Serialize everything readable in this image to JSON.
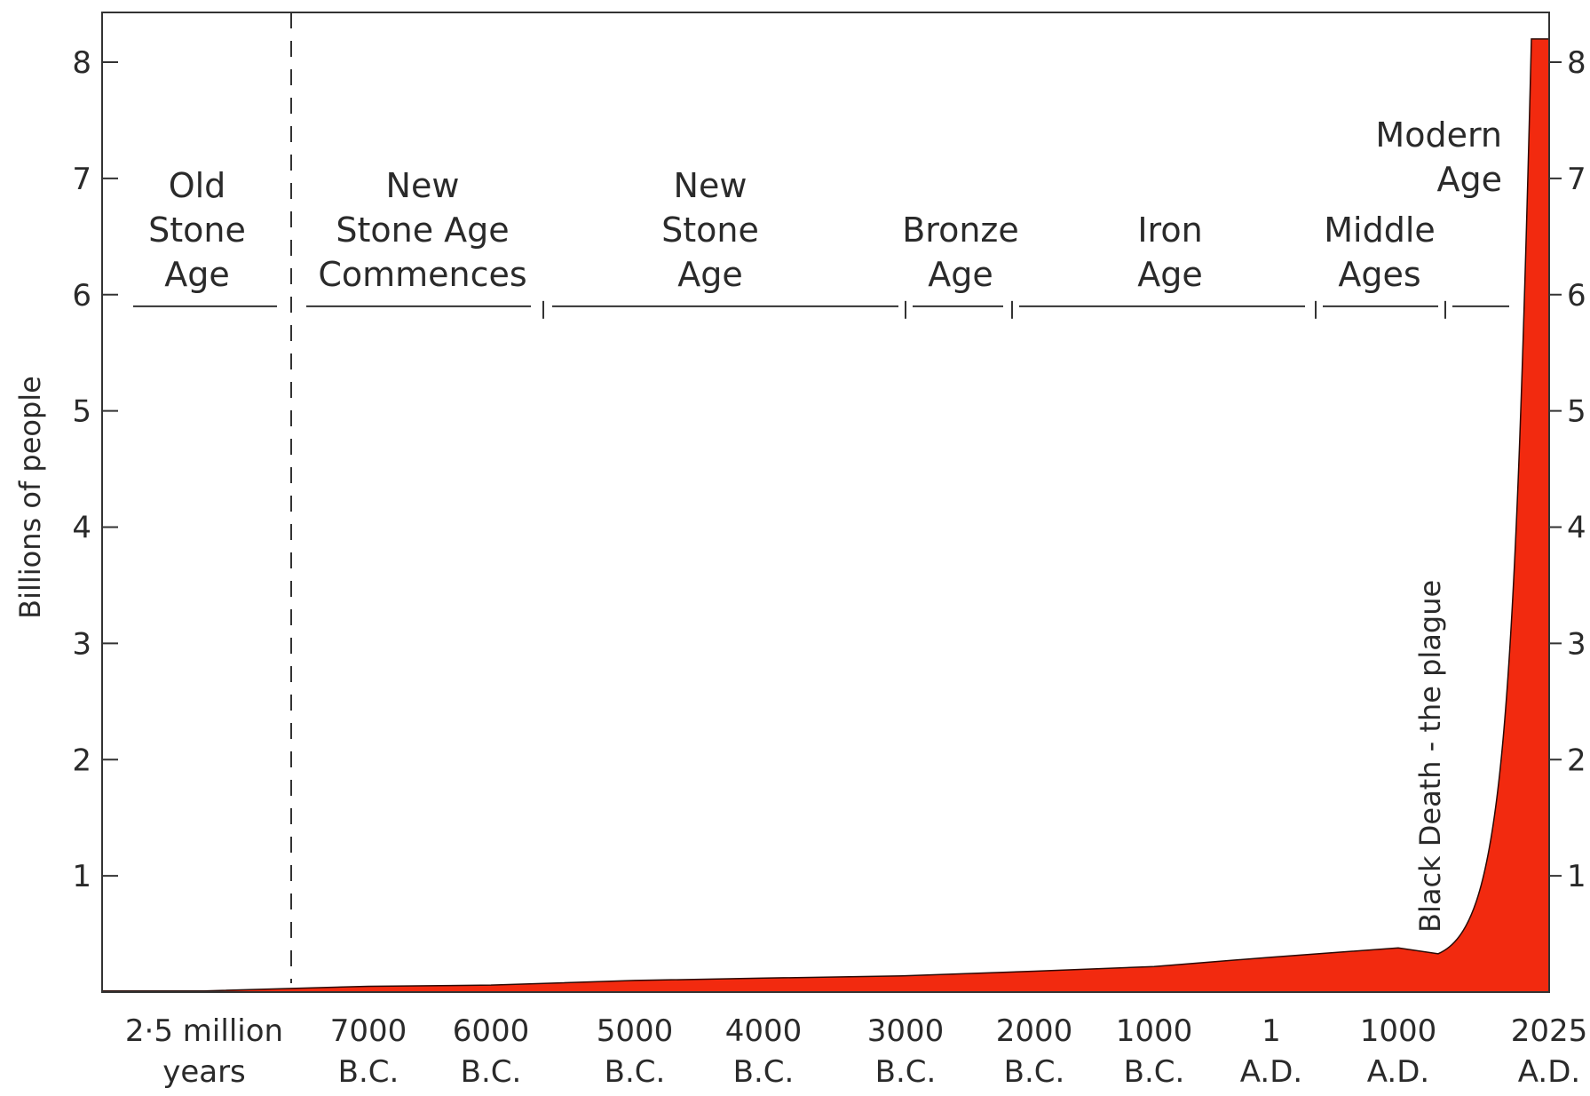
{
  "chart_data": {
    "type": "area",
    "title": "",
    "xlabel": "",
    "ylabel": "Billions of people",
    "ylim": [
      0,
      8.5
    ],
    "y_ticks": [
      1,
      2,
      3,
      4,
      5,
      6,
      7,
      8
    ],
    "y_ticks_right": true,
    "grid": false,
    "fill_color": "#f22a0f",
    "x_ticks": [
      {
        "key": "x0",
        "lines": [
          "2·5 million",
          "years"
        ]
      },
      {
        "key": "x1",
        "lines": [
          "7000",
          "B.C."
        ]
      },
      {
        "key": "x2",
        "lines": [
          "6000",
          "B.C."
        ]
      },
      {
        "key": "x3",
        "lines": [
          "5000",
          "B.C."
        ]
      },
      {
        "key": "x4",
        "lines": [
          "4000",
          "B.C."
        ]
      },
      {
        "key": "x5",
        "lines": [
          "3000",
          "B.C."
        ]
      },
      {
        "key": "x6",
        "lines": [
          "2000",
          "B.C."
        ]
      },
      {
        "key": "x7",
        "lines": [
          "1000",
          "B.C."
        ]
      },
      {
        "key": "x8",
        "lines": [
          "1",
          "A.D."
        ]
      },
      {
        "key": "x9",
        "lines": [
          "1000",
          "A.D."
        ]
      },
      {
        "key": "x10",
        "lines": [
          "2025",
          "A.D."
        ]
      }
    ],
    "eras": [
      {
        "key": "era0",
        "lines": [
          "Old",
          "Stone",
          "Age"
        ]
      },
      {
        "key": "era1",
        "lines": [
          "New",
          "Stone Age",
          "Commences"
        ]
      },
      {
        "key": "era2",
        "lines": [
          "New",
          "Stone",
          "Age"
        ]
      },
      {
        "key": "era3",
        "lines": [
          "Bronze",
          "Age"
        ]
      },
      {
        "key": "era4",
        "lines": [
          "Iron",
          "Age"
        ]
      },
      {
        "key": "era5",
        "lines": [
          "Middle",
          "Ages"
        ]
      },
      {
        "key": "era6",
        "lines": [
          "Modern",
          "Age"
        ]
      }
    ],
    "annotations": [
      {
        "key": "black_death",
        "text": "Black Death - the plague"
      }
    ],
    "series": [
      {
        "values": [
          {
            "x": "2·5 million years",
            "y": 0.01
          },
          {
            "x": "7000 B.C.",
            "y": 0.05
          },
          {
            "x": "6000 B.C.",
            "y": 0.06
          },
          {
            "x": "5000 B.C.",
            "y": 0.1
          },
          {
            "x": "4000 B.C.",
            "y": 0.12
          },
          {
            "x": "3000 B.C.",
            "y": 0.14
          },
          {
            "x": "2000 B.C.",
            "y": 0.18
          },
          {
            "x": "1000 B.C.",
            "y": 0.22
          },
          {
            "x": "1 A.D.",
            "y": 0.3
          },
          {
            "x": "1000 A.D.",
            "y": 0.38
          },
          {
            "x": "1350 A.D.",
            "y": 0.33
          },
          {
            "x": "2025 A.D.",
            "y": 8.2
          }
        ]
      }
    ]
  }
}
